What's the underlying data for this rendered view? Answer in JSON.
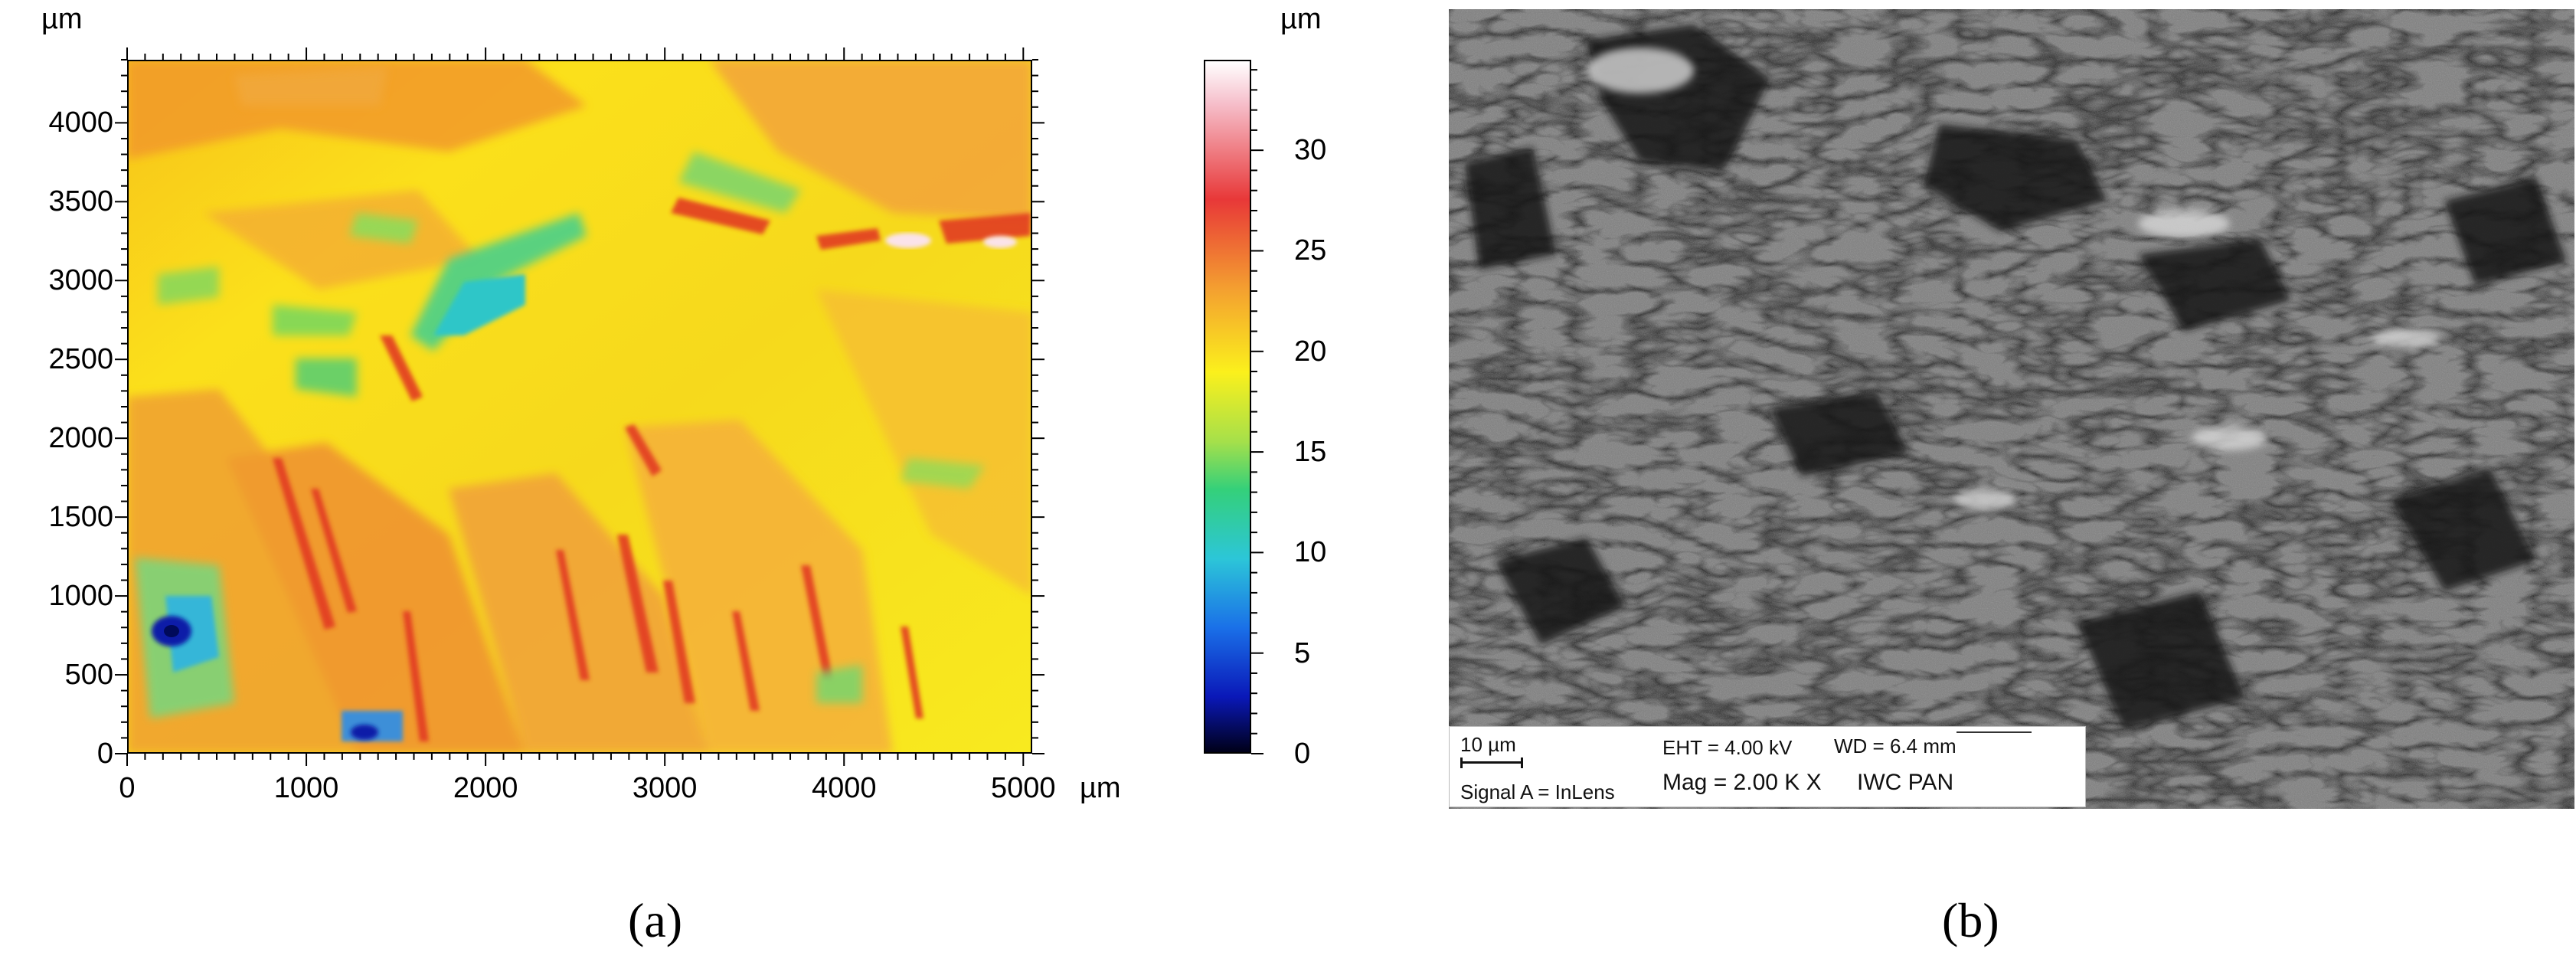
{
  "panel_a": {
    "label": "(a)",
    "y_unit": "µm",
    "x_unit": "µm",
    "colorbar_unit": "µm",
    "y_ticks": [
      "4000",
      "3500",
      "3000",
      "2500",
      "2000",
      "1500",
      "1000",
      "500",
      "0"
    ],
    "x_ticks": [
      "0",
      "1000",
      "2000",
      "3000",
      "4000",
      "5000"
    ],
    "colorbar_ticks": [
      "30",
      "25",
      "20",
      "15",
      "10",
      "5",
      "0"
    ]
  },
  "panel_b": {
    "label": "(b)",
    "scale_bar": "10 µm",
    "signal": "Signal A = InLens",
    "eht": "EHT =  4.00 kV",
    "wd": "WD =  6.4 mm",
    "mag": "Mag =   2.00 K X",
    "institution": "IWC PAN"
  }
}
